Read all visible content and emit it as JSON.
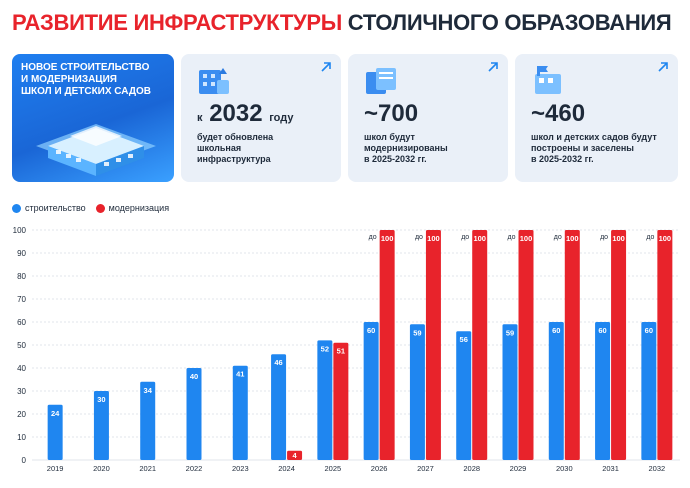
{
  "title": {
    "part1": "РАЗВИТИЕ ИНФРАСТРУКТУРЫ",
    "part2": "СТОЛИЧНОГО ОБРАЗОВАНИЯ"
  },
  "hero": {
    "lines": [
      "НОВОЕ СТРОИТЕЛЬСТВО",
      "И МОДЕРНИЗАЦИЯ",
      "ШКОЛ И ДЕТСКИХ САДОВ"
    ]
  },
  "cards": [
    {
      "prefix": "к",
      "value": "2032",
      "suffix": "году",
      "desc": [
        "будет обновлена",
        "школьная",
        "инфраструктура"
      ]
    },
    {
      "prefix": "",
      "value": "~700",
      "suffix": "",
      "desc": [
        "школ будут",
        "модернизированы",
        "в 2025-2032 гг."
      ]
    },
    {
      "prefix": "",
      "value": "~460",
      "suffix": "",
      "desc": [
        "школ и детских садов будут",
        "построены и заселены",
        "в 2025-2032 гг."
      ]
    }
  ],
  "colors": {
    "construction": "#1f86f0",
    "modernization": "#e8232b",
    "accent_red": "#e8232b",
    "text": "#1e2a3a"
  },
  "chart_data": {
    "type": "bar",
    "categories": [
      "2019",
      "2020",
      "2021",
      "2022",
      "2023",
      "2024",
      "2025",
      "2026",
      "2027",
      "2028",
      "2029",
      "2030",
      "2031",
      "2032"
    ],
    "series": [
      {
        "name": "строительство",
        "values": [
          24,
          30,
          34,
          40,
          41,
          46,
          52,
          60,
          59,
          56,
          59,
          60,
          60,
          60
        ]
      },
      {
        "name": "модернизация",
        "values": [
          null,
          null,
          null,
          null,
          null,
          4,
          51,
          100,
          100,
          100,
          100,
          100,
          100,
          100
        ]
      }
    ],
    "series_value_prefix": [
      null,
      null,
      null,
      null,
      null,
      null,
      null,
      "до",
      "до",
      "до",
      "до",
      "до",
      "до",
      "до"
    ],
    "yticks": [
      0,
      10,
      20,
      30,
      40,
      50,
      60,
      70,
      80,
      90,
      100
    ],
    "ylim": [
      0,
      100
    ],
    "grid": true,
    "legend": "top-left"
  }
}
